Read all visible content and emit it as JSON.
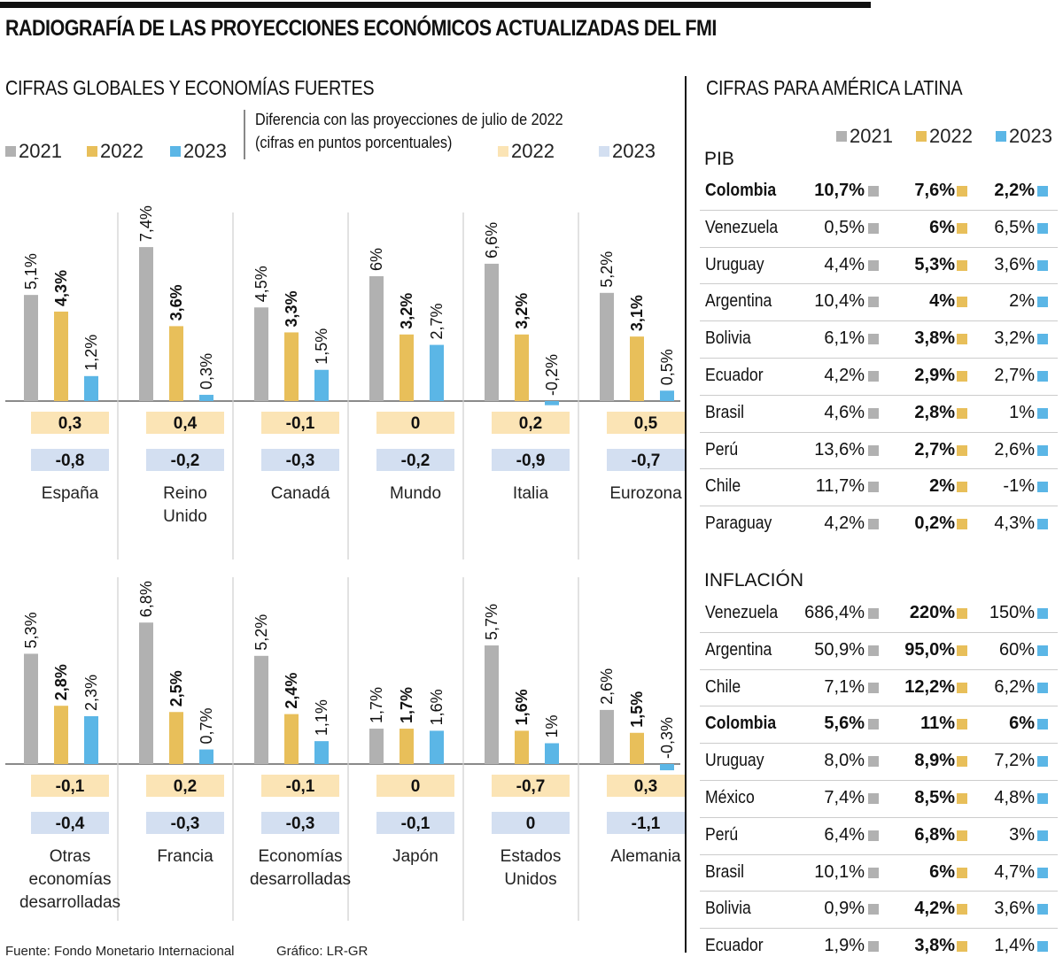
{
  "title": "RADIOGRAFÍA DE LAS PROYECCIONES ECONÓMICOS ACTUALIZADAS DEL FMI",
  "colors": {
    "y2021": "#b1b1b1",
    "y2022": "#e8bf5a",
    "y2023": "#5bb6e6",
    "diff2022_bg": "#fbe4b5",
    "diff2023_bg": "#d3dff1"
  },
  "left_section": {
    "title": "CIFRAS GLOBALES Y ECONOMÍAS FUERTES",
    "legend": [
      "2021",
      "2022",
      "2023"
    ],
    "diff_note_line1": "Diferencia con las proyecciones de julio de 2022",
    "diff_note_line2": "(cifras en puntos porcentuales)",
    "diff_legend": [
      "2022",
      "2023"
    ]
  },
  "chart_data": {
    "type": "bar",
    "title": "CIFRAS GLOBALES Y ECONOMÍAS FUERTES",
    "series_names": [
      "2021",
      "2022",
      "2023"
    ],
    "unit": "%",
    "groups": [
      {
        "label": "España",
        "values": [
          5.1,
          4.3,
          1.2
        ],
        "labels": [
          "5,1%",
          "4,3%",
          "1,2%"
        ],
        "diff": [
          "0,3",
          "-0,8"
        ]
      },
      {
        "label": "Reino Unido",
        "values": [
          7.4,
          3.6,
          0.3
        ],
        "labels": [
          "7,4%",
          "3,6%",
          "0,3%"
        ],
        "diff": [
          "0,4",
          "-0,2"
        ]
      },
      {
        "label": "Canadá",
        "values": [
          4.5,
          3.3,
          1.5
        ],
        "labels": [
          "4,5%",
          "3,3%",
          "1,5%"
        ],
        "diff": [
          "-0,1",
          "-0,3"
        ]
      },
      {
        "label": "Mundo",
        "values": [
          6.0,
          3.2,
          2.7
        ],
        "labels": [
          "6%",
          "3,2%",
          "2,7%"
        ],
        "diff": [
          "0",
          "-0,2"
        ]
      },
      {
        "label": "Italia",
        "values": [
          6.6,
          3.2,
          -0.2
        ],
        "labels": [
          "6,6%",
          "3,2%",
          "-0,2%"
        ],
        "diff": [
          "0,2",
          "-0,9"
        ]
      },
      {
        "label": "Eurozona",
        "values": [
          5.2,
          3.1,
          0.5
        ],
        "labels": [
          "5,2%",
          "3,1%",
          "0,5%"
        ],
        "diff": [
          "0,5",
          "-0,7"
        ]
      },
      {
        "label": "Otras economías desarrolladas",
        "values": [
          5.3,
          2.8,
          2.3
        ],
        "labels": [
          "5,3%",
          "2,8%",
          "2,3%"
        ],
        "diff": [
          "-0,1",
          "-0,4"
        ]
      },
      {
        "label": "Francia",
        "values": [
          6.8,
          2.5,
          0.7
        ],
        "labels": [
          "6,8%",
          "2,5%",
          "0,7%"
        ],
        "diff": [
          "0,2",
          "-0,3"
        ]
      },
      {
        "label": "Economías desarrolladas",
        "values": [
          5.2,
          2.4,
          1.1
        ],
        "labels": [
          "5,2%",
          "2,4%",
          "1,1%"
        ],
        "diff": [
          "-0,1",
          "-0,3"
        ]
      },
      {
        "label": "Japón",
        "values": [
          1.7,
          1.7,
          1.6
        ],
        "labels": [
          "1,7%",
          "1,7%",
          "1,6%"
        ],
        "diff": [
          "0",
          "-0,1"
        ]
      },
      {
        "label": "Estados Unidos",
        "values": [
          5.7,
          1.6,
          1.0
        ],
        "labels": [
          "5,7%",
          "1,6%",
          "1%"
        ],
        "diff": [
          "-0,7",
          "0"
        ]
      },
      {
        "label": "Alemania",
        "values": [
          2.6,
          1.5,
          -0.3
        ],
        "labels": [
          "2,6%",
          "1,5%",
          "-0,3%"
        ],
        "diff": [
          "0,3",
          "-1,1"
        ]
      }
    ],
    "group_label_lines": [
      [
        "España"
      ],
      [
        "Reino",
        "Unido"
      ],
      [
        "Canadá"
      ],
      [
        "Mundo"
      ],
      [
        "Italia"
      ],
      [
        "Eurozona"
      ],
      [
        "Otras",
        "economías",
        "desarrolladas"
      ],
      [
        "Francia"
      ],
      [
        "Economías",
        "desarrolladas"
      ],
      [
        "Japón"
      ],
      [
        "Estados",
        "Unidos"
      ],
      [
        "Alemania"
      ]
    ]
  },
  "right_section": {
    "title": "CIFRAS PARA AMÉRICA LATINA",
    "legend": [
      "2021",
      "2022",
      "2023"
    ],
    "pib": {
      "label": "PIB",
      "rows": [
        {
          "country": "Colombia",
          "v2021": "10,7%",
          "v2022": "7,6%",
          "v2023": "2,2%",
          "highlight": true
        },
        {
          "country": "Venezuela",
          "v2021": "0,5%",
          "v2022": "6%",
          "v2023": "6,5%"
        },
        {
          "country": "Uruguay",
          "v2021": "4,4%",
          "v2022": "5,3%",
          "v2023": "3,6%"
        },
        {
          "country": "Argentina",
          "v2021": "10,4%",
          "v2022": "4%",
          "v2023": "2%"
        },
        {
          "country": "Bolivia",
          "v2021": "6,1%",
          "v2022": "3,8%",
          "v2023": "3,2%"
        },
        {
          "country": "Ecuador",
          "v2021": "4,2%",
          "v2022": "2,9%",
          "v2023": "2,7%"
        },
        {
          "country": "Brasil",
          "v2021": "4,6%",
          "v2022": "2,8%",
          "v2023": "1%"
        },
        {
          "country": "Perú",
          "v2021": "13,6%",
          "v2022": "2,7%",
          "v2023": "2,6%"
        },
        {
          "country": "Chile",
          "v2021": "11,7%",
          "v2022": "2%",
          "v2023": "-1%"
        },
        {
          "country": "Paraguay",
          "v2021": "4,2%",
          "v2022": "0,2%",
          "v2023": "4,3%"
        }
      ]
    },
    "inflacion": {
      "label": "INFLACIÓN",
      "rows": [
        {
          "country": "Venezuela",
          "v2021": "686,4%",
          "v2022": "220%",
          "v2023": "150%"
        },
        {
          "country": "Argentina",
          "v2021": "50,9%",
          "v2022": "95,0%",
          "v2023": "60%"
        },
        {
          "country": "Chile",
          "v2021": "7,1%",
          "v2022": "12,2%",
          "v2023": "6,2%"
        },
        {
          "country": "Colombia",
          "v2021": "5,6%",
          "v2022": "11%",
          "v2023": "6%",
          "highlight": true
        },
        {
          "country": "Uruguay",
          "v2021": "8,0%",
          "v2022": "8,9%",
          "v2023": "7,2%"
        },
        {
          "country": "México",
          "v2021": "7,4%",
          "v2022": "8,5%",
          "v2023": "4,8%"
        },
        {
          "country": "Perú",
          "v2021": "6,4%",
          "v2022": "6,8%",
          "v2023": "3%"
        },
        {
          "country": "Brasil",
          "v2021": "10,1%",
          "v2022": "6%",
          "v2023": "4,7%"
        },
        {
          "country": "Bolivia",
          "v2021": "0,9%",
          "v2022": "4,2%",
          "v2023": "3,6%"
        },
        {
          "country": "Ecuador",
          "v2021": "1,9%",
          "v2022": "3,8%",
          "v2023": "1,4%"
        }
      ]
    }
  },
  "footer": {
    "source": "Fuente: Fondo Monetario Internacional",
    "credit": "Gráfico: LR-GR"
  }
}
